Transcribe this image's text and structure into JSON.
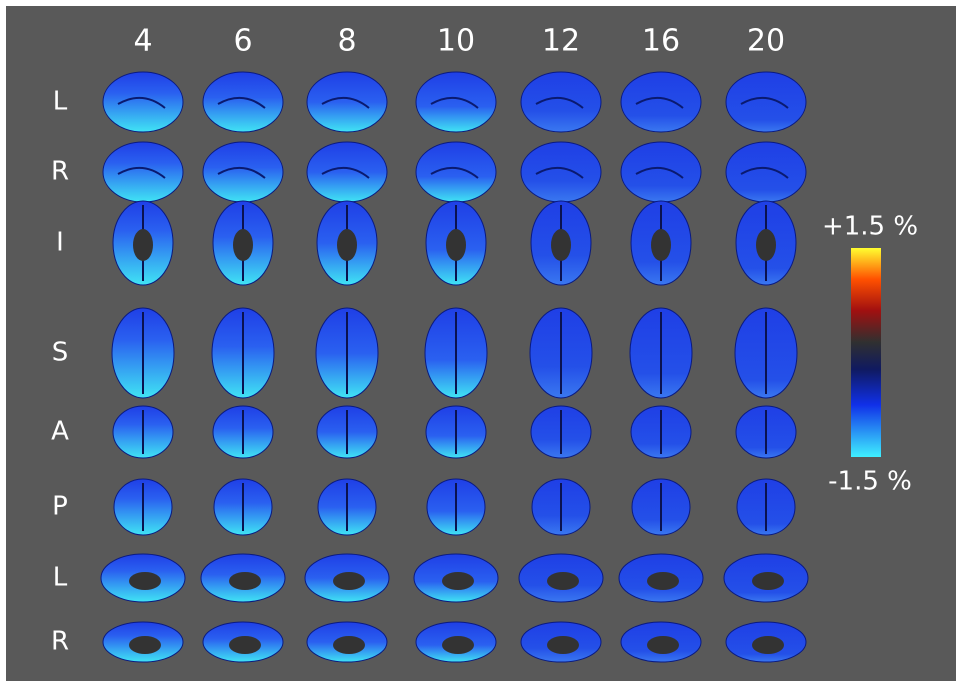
{
  "column_labels": [
    "4",
    "6",
    "8",
    "10",
    "12",
    "16",
    "20"
  ],
  "row_labels": [
    "L",
    "R",
    "I",
    "S",
    "A",
    "P",
    "L",
    "R"
  ],
  "colorbar": {
    "max_label": "+1.5 %",
    "min_label": "-1.5 %"
  }
}
